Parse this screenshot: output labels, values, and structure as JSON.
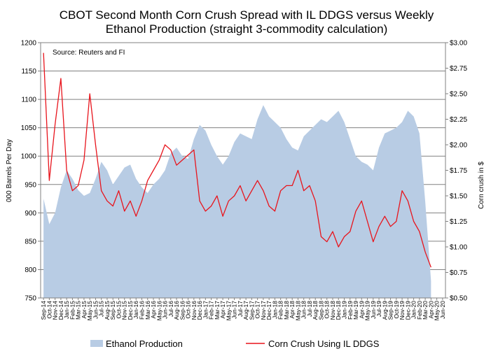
{
  "chart_data": {
    "type": "area+line",
    "title_line1": "CBOT Second Month Corn Crush Spread with IL DDGS versus Weekly",
    "title_line2": "Ethanol Production (straight 3-commodity calculation)",
    "annotation": "Source: Reuters and FI",
    "ylabel_left": "000 Barrels Per Day",
    "ylabel_right": "Corn crush in $",
    "ylim_left": [
      750,
      1200
    ],
    "ylim_right": [
      0.5,
      3.0
    ],
    "yticks_left": [
      "1200",
      "1150",
      "1100",
      "1050",
      "1000",
      "950",
      "900",
      "850",
      "800",
      "750"
    ],
    "yticks_right": [
      "$3.00",
      "$2.75",
      "$2.50",
      "$2.25",
      "$2.00",
      "$1.75",
      "$1.50",
      "$1.25",
      "$1.00",
      "$0.75",
      "$0.50"
    ],
    "grid": "horizontal",
    "legend_position": "bottom",
    "colors": {
      "ethanol_fill": "#b8cce4",
      "crush_line": "#e8141c",
      "grid": "#808080"
    },
    "x_tick_labels": [
      "Sep-14",
      "Oct-14",
      "Nov-14",
      "Dec-14",
      "Jan-15",
      "Feb-15",
      "Mar-15",
      "Apr-15",
      "May-15",
      "Jun-15",
      "Jul-15",
      "Aug-15",
      "Sep-15",
      "Oct-15",
      "Nov-15",
      "Dec-15",
      "Jan-16",
      "Feb-16",
      "Mar-16",
      "Apr-16",
      "May-16",
      "Jun-16",
      "Jul-16",
      "Aug-16",
      "Sep-16",
      "Oct-16",
      "Nov-16",
      "Dec-16",
      "Jan-17",
      "Feb-17",
      "Mar-17",
      "Apr-17",
      "May-17",
      "Jun-17",
      "Jul-17",
      "Aug-17",
      "Sep-17",
      "Oct-17",
      "Nov-17",
      "Dec-17",
      "Jan-18",
      "Feb-18",
      "Mar-18",
      "Apr-18",
      "May-18",
      "Jun-18",
      "Jul-18",
      "Aug-18",
      "Sep-18",
      "Oct-18",
      "Nov-18",
      "Dec-18",
      "Jan-19",
      "Feb-19",
      "Mar-19",
      "Apr-19",
      "May-19",
      "Jun-19",
      "Jul-19",
      "Aug-19",
      "Sep-19",
      "Oct-19",
      "Nov-19",
      "Dec-19",
      "Jan-20",
      "Feb-20",
      "Mar-20",
      "Apr-20",
      "May-20",
      "Jun-20"
    ],
    "series": [
      {
        "name": "Ethanol Production",
        "axis": "left",
        "style": "area",
        "x": [
          "Sep-14",
          "Oct-14",
          "Nov-14",
          "Dec-14",
          "Jan-15",
          "Feb-15",
          "Mar-15",
          "Apr-15",
          "May-15",
          "Jun-15",
          "Jul-15",
          "Aug-15",
          "Sep-15",
          "Oct-15",
          "Nov-15",
          "Dec-15",
          "Jan-16",
          "Feb-16",
          "Mar-16",
          "Apr-16",
          "May-16",
          "Jun-16",
          "Jul-16",
          "Aug-16",
          "Sep-16",
          "Oct-16",
          "Nov-16",
          "Dec-16",
          "Jan-17",
          "Feb-17",
          "Mar-17",
          "Apr-17",
          "May-17",
          "Jun-17",
          "Jul-17",
          "Aug-17",
          "Sep-17",
          "Oct-17",
          "Nov-17",
          "Dec-17",
          "Jan-18",
          "Feb-18",
          "Mar-18",
          "Apr-18",
          "May-18",
          "Jun-18",
          "Jul-18",
          "Aug-18",
          "Sep-18",
          "Oct-18",
          "Nov-18",
          "Dec-18",
          "Jan-19",
          "Feb-19",
          "Mar-19",
          "Apr-19",
          "May-19",
          "Jun-19",
          "Jul-19",
          "Aug-19",
          "Sep-19",
          "Oct-19",
          "Nov-19",
          "Dec-19",
          "Jan-20",
          "Feb-20",
          "Mar-20",
          "Apr-20"
        ],
        "values": [
          925,
          880,
          900,
          945,
          975,
          960,
          940,
          930,
          935,
          960,
          990,
          975,
          950,
          965,
          980,
          985,
          960,
          945,
          935,
          950,
          960,
          975,
          1005,
          1015,
          1000,
          995,
          1030,
          1055,
          1045,
          1020,
          1000,
          985,
          1000,
          1025,
          1040,
          1035,
          1030,
          1065,
          1090,
          1070,
          1060,
          1050,
          1030,
          1015,
          1010,
          1035,
          1045,
          1055,
          1065,
          1060,
          1070,
          1080,
          1060,
          1030,
          1000,
          990,
          985,
          975,
          1015,
          1040,
          1045,
          1050,
          1060,
          1080,
          1070,
          1040,
          920,
          780
        ]
      },
      {
        "name": "Corn Crush Using IL DDGS",
        "axis": "right",
        "style": "line",
        "x": [
          "Sep-14",
          "Oct-14",
          "Nov-14",
          "Dec-14",
          "Jan-15",
          "Feb-15",
          "Mar-15",
          "Apr-15",
          "May-15",
          "Jun-15",
          "Jul-15",
          "Aug-15",
          "Sep-15",
          "Oct-15",
          "Nov-15",
          "Dec-15",
          "Jan-16",
          "Feb-16",
          "Mar-16",
          "Apr-16",
          "May-16",
          "Jun-16",
          "Jul-16",
          "Aug-16",
          "Sep-16",
          "Oct-16",
          "Nov-16",
          "Dec-16",
          "Jan-17",
          "Feb-17",
          "Mar-17",
          "Apr-17",
          "May-17",
          "Jun-17",
          "Jul-17",
          "Aug-17",
          "Sep-17",
          "Oct-17",
          "Nov-17",
          "Dec-17",
          "Jan-18",
          "Feb-18",
          "Mar-18",
          "Apr-18",
          "May-18",
          "Jun-18",
          "Jul-18",
          "Aug-18",
          "Sep-18",
          "Oct-18",
          "Nov-18",
          "Dec-18",
          "Jan-19",
          "Feb-19",
          "Mar-19",
          "Apr-19",
          "May-19",
          "Jun-19",
          "Jul-19",
          "Aug-19",
          "Sep-19",
          "Oct-19",
          "Nov-19",
          "Dec-19",
          "Jan-20",
          "Feb-20",
          "Mar-20",
          "Apr-20"
        ],
        "values": [
          2.9,
          1.65,
          2.2,
          2.65,
          1.75,
          1.55,
          1.6,
          1.85,
          2.5,
          2.0,
          1.55,
          1.45,
          1.4,
          1.55,
          1.35,
          1.45,
          1.3,
          1.45,
          1.65,
          1.75,
          1.85,
          2.0,
          1.95,
          1.8,
          1.85,
          1.9,
          1.95,
          1.45,
          1.35,
          1.4,
          1.5,
          1.3,
          1.45,
          1.5,
          1.6,
          1.45,
          1.55,
          1.65,
          1.55,
          1.4,
          1.35,
          1.55,
          1.6,
          1.6,
          1.75,
          1.55,
          1.6,
          1.45,
          1.1,
          1.05,
          1.15,
          1.0,
          1.1,
          1.15,
          1.35,
          1.45,
          1.25,
          1.05,
          1.2,
          1.3,
          1.2,
          1.25,
          1.55,
          1.45,
          1.25,
          1.15,
          0.95,
          0.8
        ]
      }
    ]
  }
}
